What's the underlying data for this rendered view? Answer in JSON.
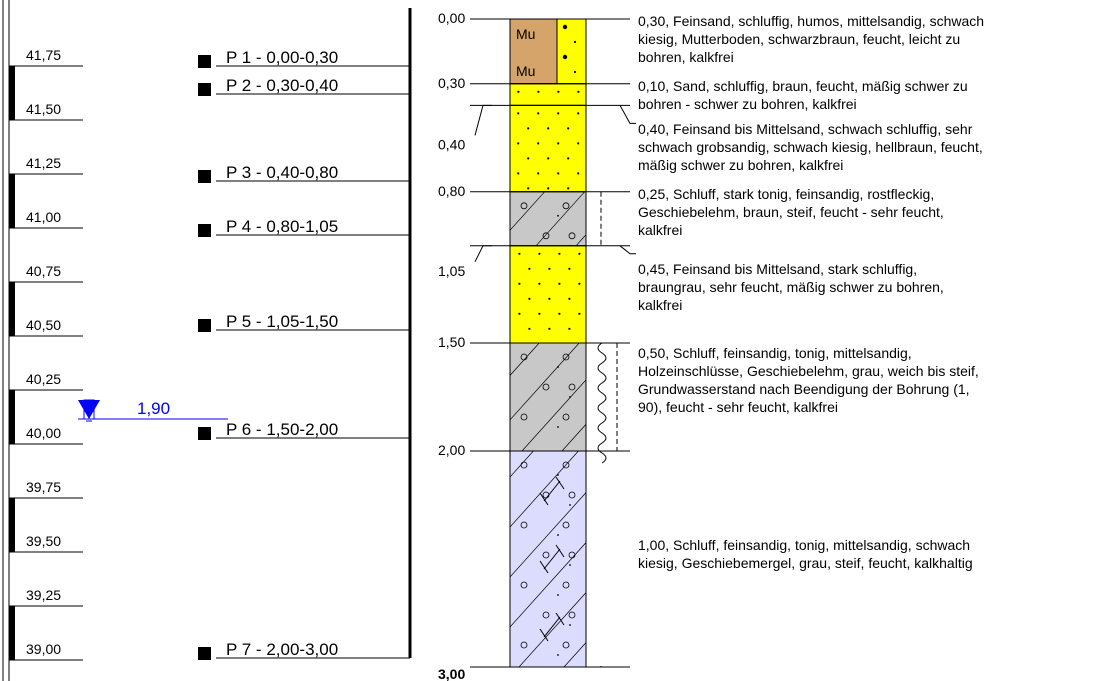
{
  "elevations": [
    "41,75",
    "41,50",
    "41,25",
    "41,00",
    "40,75",
    "40,50",
    "40,25",
    "40,00",
    "39,75",
    "39,50",
    "39,25",
    "39,00"
  ],
  "samples": [
    {
      "label": "P 1 - 0,00-0,30",
      "depth": 0.0
    },
    {
      "label": "P 2 - 0,30-0,40",
      "depth": 0.3
    },
    {
      "label": "P 3 - 0,40-0,80",
      "depth": 0.4
    },
    {
      "label": "P 4 - 0,80-1,05",
      "depth": 0.8
    },
    {
      "label": "P 5 - 1,05-1,50",
      "depth": 1.05
    },
    {
      "label": "P 6 - 1,50-2,00",
      "depth": 1.5
    },
    {
      "label": "P 7 - 2,00-3,00",
      "depth": 2.0
    }
  ],
  "groundwater": {
    "label": "1,90",
    "depth": 1.9,
    "color": "#0000ff"
  },
  "layers": [
    {
      "top": 0.0,
      "bottom": 0.3,
      "top_label": "0,00",
      "symbol": "Mu",
      "fill": "#d4a46a",
      "pattern": "mutterboden",
      "desc": [
        "0,30, Feinsand, schluffig, humos, mittelsandig, schwach",
        "kiesig, Mutterboden, schwarzbraun, feucht, leicht zu",
        "bohren, kalkfrei"
      ]
    },
    {
      "top": 0.3,
      "bottom": 0.4,
      "top_label": "0,30",
      "symbol": "",
      "fill": "#ffff00",
      "pattern": "sand",
      "desc": [
        "0,10, Sand, schluffig, braun, feucht, mäßig schwer zu",
        "bohren - schwer zu bohren, kalkfrei"
      ]
    },
    {
      "top": 0.4,
      "bottom": 0.8,
      "top_label": "0,40",
      "symbol": "",
      "fill": "#ffff00",
      "pattern": "sand",
      "desc": [
        "0,40, Feinsand bis Mittelsand, schwach schluffig, sehr",
        "schwach grobsandig, schwach kiesig, hellbraun, feucht,",
        "mäßig schwer zu bohren, kalkfrei"
      ]
    },
    {
      "top": 0.8,
      "bottom": 1.05,
      "top_label": "0,80",
      "symbol": "",
      "fill": "#c8c8c8",
      "pattern": "lehm",
      "desc": [
        "0,25, Schluff, stark tonig, feinsandig, rostfleckig,",
        "Geschiebelehm, braun, steif, feucht - sehr feucht,",
        "kalkfrei"
      ]
    },
    {
      "top": 1.05,
      "bottom": 1.5,
      "top_label": "1,05",
      "symbol": "",
      "fill": "#ffff00",
      "pattern": "sand",
      "desc": [
        "0,45, Feinsand bis Mittelsand, stark schluffig,",
        "braungrau, sehr feucht, mäßig schwer zu bohren,",
        "kalkfrei"
      ]
    },
    {
      "top": 1.5,
      "bottom": 2.0,
      "top_label": "1,50",
      "symbol": "",
      "fill": "#c8c8c8",
      "pattern": "lehm-weich",
      "desc": [
        "0,50, Schluff, feinsandig, tonig, mittelsandig,",
        "Holzeinschlüsse, Geschiebelehm, grau, weich bis steif,",
        "Grundwasserstand nach Beendigung der Bohrung (1,",
        "90), feucht - sehr feucht, kalkfrei"
      ]
    },
    {
      "top": 2.0,
      "bottom": 3.0,
      "top_label": "2,00",
      "symbol": "",
      "fill": "#dcdcff",
      "pattern": "mergel",
      "desc": [
        "1,00, Schluff, feinsandig, tonig, mittelsandig, schwach",
        "kiesig, Geschiebemergel, grau, steif, feucht, kalkhaltig"
      ]
    }
  ],
  "final_depth_label": "3,00"
}
